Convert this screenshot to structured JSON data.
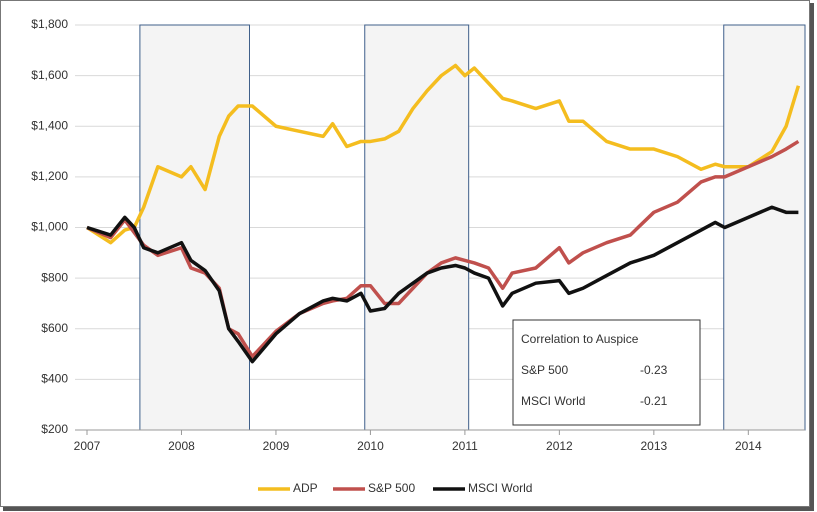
{
  "chart_data": {
    "type": "line",
    "x": [
      2007,
      2007.25,
      2007.4,
      2007.5,
      2007.6,
      2007.75,
      2008,
      2008.1,
      2008.25,
      2008.4,
      2008.5,
      2008.6,
      2008.75,
      2009,
      2009.25,
      2009.5,
      2009.6,
      2009.75,
      2009.9,
      2010,
      2010.15,
      2010.3,
      2010.45,
      2010.6,
      2010.75,
      2010.9,
      2011,
      2011.1,
      2011.25,
      2011.4,
      2011.5,
      2011.75,
      2012,
      2012.1,
      2012.25,
      2012.5,
      2012.75,
      2013,
      2013.25,
      2013.5,
      2013.65,
      2013.75,
      2014,
      2014.25,
      2014.4,
      2014.53
    ],
    "series": [
      {
        "name": "ADP",
        "color": "#f4bd1f",
        "values": [
          1000,
          940,
          990,
          1000,
          1080,
          1240,
          1200,
          1240,
          1150,
          1360,
          1440,
          1480,
          1480,
          1400,
          1380,
          1360,
          1410,
          1320,
          1340,
          1340,
          1350,
          1380,
          1470,
          1540,
          1600,
          1640,
          1600,
          1630,
          1570,
          1510,
          1500,
          1470,
          1500,
          1420,
          1420,
          1340,
          1310,
          1310,
          1280,
          1230,
          1250,
          1240,
          1240,
          1300,
          1400,
          1560
        ]
      },
      {
        "name": "S&P 500",
        "color": "#c0504d",
        "values": [
          1000,
          960,
          1030,
          980,
          930,
          890,
          920,
          840,
          820,
          760,
          600,
          580,
          490,
          590,
          660,
          700,
          710,
          720,
          770,
          770,
          700,
          700,
          760,
          820,
          860,
          880,
          870,
          860,
          840,
          760,
          820,
          840,
          920,
          860,
          900,
          940,
          970,
          1060,
          1100,
          1180,
          1200,
          1200,
          1240,
          1280,
          1310,
          1340
        ]
      },
      {
        "name": "MSCI World",
        "color": "#111111",
        "values": [
          1000,
          970,
          1040,
          1000,
          920,
          900,
          940,
          870,
          830,
          750,
          600,
          550,
          470,
          580,
          660,
          710,
          720,
          710,
          740,
          670,
          680,
          740,
          780,
          820,
          840,
          850,
          840,
          820,
          800,
          690,
          740,
          780,
          790,
          740,
          760,
          810,
          860,
          890,
          940,
          990,
          1020,
          1000,
          1040,
          1080,
          1060,
          1060
        ]
      }
    ],
    "xlim": [
      2007,
      2014.6
    ],
    "xticks": [
      2007,
      2008,
      2009,
      2010,
      2011,
      2012,
      2013,
      2014
    ],
    "ylim": [
      200,
      1800
    ],
    "yticks": [
      {
        "value": 200,
        "label": "$200"
      },
      {
        "value": 400,
        "label": "$400"
      },
      {
        "value": 600,
        "label": "$600"
      },
      {
        "value": 800,
        "label": "$800"
      },
      {
        "value": 1000,
        "label": "$1,000"
      },
      {
        "value": 1200,
        "label": "$1,200"
      },
      {
        "value": 1400,
        "label": "$1,400"
      },
      {
        "value": 1600,
        "label": "$1,600"
      },
      {
        "value": 1800,
        "label": "$1,800"
      }
    ],
    "grid": true,
    "legend": "bottom",
    "shaded_periods": [
      [
        2007.56,
        2008.72
      ],
      [
        2009.94,
        2011.04
      ],
      [
        2013.74,
        2014.6
      ]
    ],
    "correlation_box": {
      "title": "Correlation to Auspice",
      "rows": [
        [
          "S&P 500",
          -0.23
        ],
        [
          "MSCI World",
          -0.21
        ]
      ]
    }
  }
}
